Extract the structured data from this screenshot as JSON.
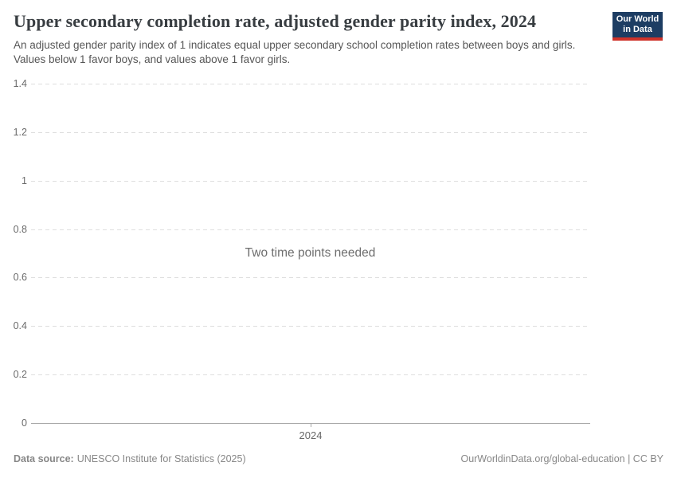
{
  "header": {
    "title": "Upper secondary completion rate, adjusted gender parity index, 2024",
    "subtitle": "An adjusted gender parity index of 1 indicates equal upper secondary school completion rates between boys and girls. Values below 1 favor boys, and values above 1 favor girls.",
    "logo": {
      "line1": "Our World",
      "line2": "in Data",
      "bg_color": "#1d3d63",
      "accent_color": "#cf322a"
    }
  },
  "chart_data": {
    "type": "line",
    "title": "Upper secondary completion rate, adjusted gender parity index, 2024",
    "series": [],
    "empty_message": "Two time points needed",
    "x_ticks": [
      "2024"
    ],
    "y_ticks_top_to_bottom": [
      "1.4",
      "1.2",
      "1",
      "0.8",
      "0.6",
      "0.4",
      "0.2",
      "0"
    ],
    "ylim": [
      0,
      1.4
    ],
    "xlabel": "",
    "ylabel": "",
    "grid": "horizontal dashed",
    "legend": "none"
  },
  "footer": {
    "source_label": "Data source:",
    "source_value": "UNESCO Institute for Statistics (2025)",
    "attribution": "OurWorldinData.org/global-education | CC BY"
  }
}
